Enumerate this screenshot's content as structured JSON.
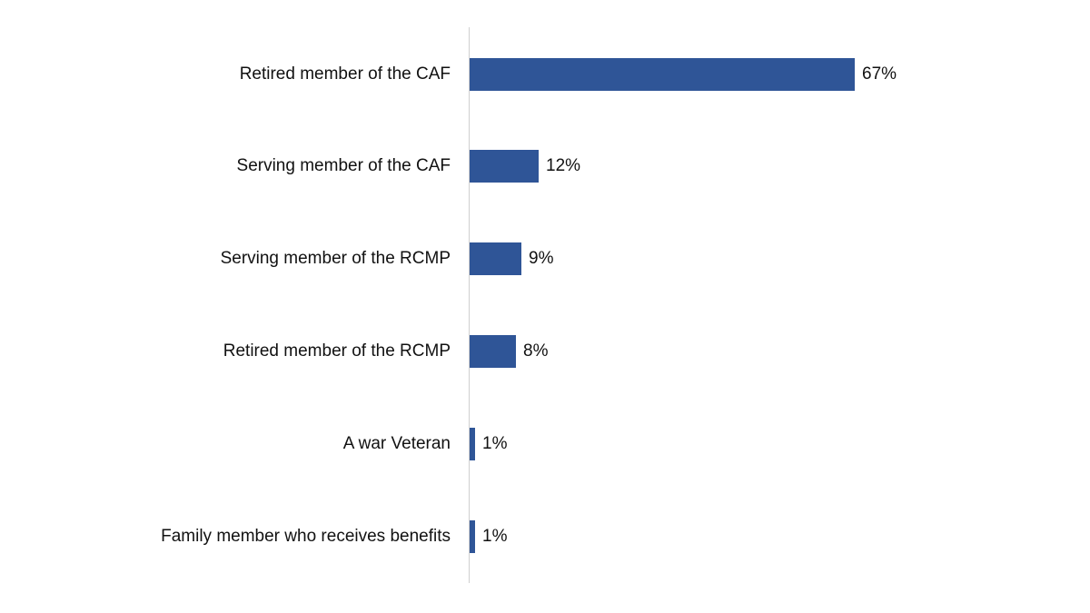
{
  "chart_data": {
    "type": "bar",
    "orientation": "horizontal",
    "title": "",
    "xlabel": "",
    "ylabel": "",
    "xlim": [
      0,
      67
    ],
    "grid": false,
    "legend": null,
    "bar_color": "#2F5597",
    "categories": [
      "Retired member of the CAF",
      "Serving member of the CAF",
      "Serving member of the RCMP",
      "Retired member of the RCMP",
      "A war Veteran",
      "Family member who receives benefits"
    ],
    "values": [
      67,
      12,
      9,
      8,
      1,
      1
    ],
    "value_labels": [
      "67%",
      "12%",
      "9%",
      "8%",
      "1%",
      "1%"
    ],
    "unit": "%"
  }
}
